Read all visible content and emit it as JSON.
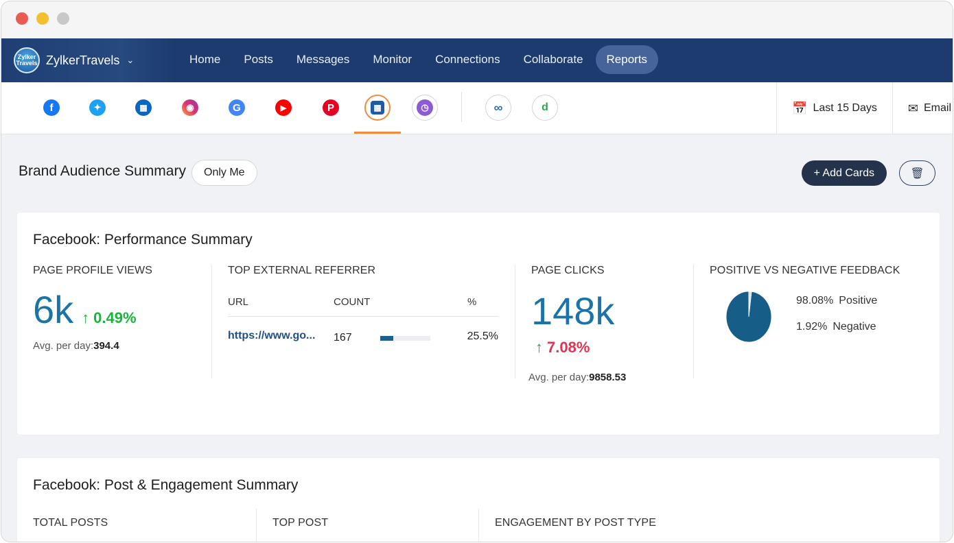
{
  "app": {
    "brand_name": "ZylkerTravels",
    "brand_logo_text": "Zylker Travels"
  },
  "nav": {
    "items": [
      "Home",
      "Posts",
      "Messages",
      "Monitor",
      "Connections",
      "Collaborate",
      "Reports"
    ],
    "active": "Reports"
  },
  "networks": [
    {
      "icon": "facebook-icon",
      "color": "#1877f2"
    },
    {
      "icon": "twitter-icon",
      "color": "#1da1f2"
    },
    {
      "icon": "linkedin-page-icon",
      "color": "#0a66c2"
    },
    {
      "icon": "instagram-icon",
      "color": "#e1306c"
    },
    {
      "icon": "google-business-icon",
      "color": "#4285f4"
    },
    {
      "icon": "youtube-icon",
      "color": "#ff0000"
    },
    {
      "icon": "pinterest-icon",
      "color": "#e60023"
    },
    {
      "icon": "dashboard-grid-icon",
      "color": "#1e5aa8",
      "selected": true
    },
    {
      "icon": "clock-report-icon",
      "color": "#8e5bd6"
    },
    {
      "icon": "zoho-cliq-icon",
      "color": "#2a6fb5"
    },
    {
      "icon": "brand-d-icon",
      "color": "#1fae4b"
    }
  ],
  "tools": {
    "date_range": "Last 15 Days",
    "email": "Email"
  },
  "page": {
    "title": "Brand Audience Summary",
    "visibility": "Only Me",
    "add_cards": "+ Add Cards"
  },
  "performance": {
    "title": "Facebook: Performance Summary",
    "profile_views": {
      "label": "PAGE PROFILE VIEWS",
      "value": "6k",
      "delta": "0.49%",
      "avg_label": "Avg. per day:",
      "avg_value": "394.4"
    },
    "referrer": {
      "label": "TOP EXTERNAL REFERRER",
      "columns": [
        "URL",
        "COUNT",
        "%"
      ],
      "rows": [
        {
          "url": "https://www.go...",
          "count": "167",
          "percent": "25.5%",
          "fraction": 0.255
        }
      ]
    },
    "page_clicks": {
      "label": "PAGE CLICKS",
      "value": "148k",
      "delta": "7.08%",
      "avg_label": "Avg. per day:",
      "avg_value": "9858.53"
    },
    "feedback": {
      "label": "POSITIVE VS NEGATIVE FEEDBACK",
      "positive_pct": "98.08%",
      "positive_label": "Positive",
      "negative_pct": "1.92%",
      "negative_label": "Negative",
      "positive_color": "#165d87",
      "negative_color": "#d9e2ea"
    }
  },
  "engagement": {
    "title": "Facebook: Post & Engagement Summary",
    "columns": [
      "TOTAL POSTS",
      "TOP POST",
      "ENGAGEMENT BY POST TYPE"
    ]
  }
}
